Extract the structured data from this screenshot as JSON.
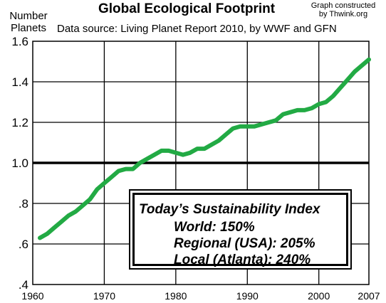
{
  "chart_data": {
    "type": "line",
    "title": "Global Ecological Footprint",
    "subtitle": "Data source: Living Planet Report 2010, by WWF and GFN",
    "credit": "Graph constructed by Thwink.org",
    "ylabel": "Number Planets",
    "xlabel": "",
    "xlim": [
      1960,
      2007
    ],
    "ylim": [
      0.4,
      1.6
    ],
    "x_ticks": [
      "1960",
      "1970",
      "1980",
      "1990",
      "2000",
      "2007"
    ],
    "x_tick_values": [
      1960,
      1970,
      1980,
      1990,
      2000,
      2007
    ],
    "y_ticks": [
      ".4",
      ".6",
      ".8",
      "1.0",
      "1.2",
      "1.4",
      "1.6"
    ],
    "y_tick_values": [
      0.4,
      0.6,
      0.8,
      1.0,
      1.2,
      1.4,
      1.6
    ],
    "grid": true,
    "reference_line": 1.0,
    "series_color": "#22aa44",
    "series": [
      {
        "x": [
          1961,
          1962,
          1963,
          1964,
          1965,
          1966,
          1967,
          1968,
          1969,
          1970,
          1971,
          1972,
          1973,
          1974,
          1975,
          1976,
          1977,
          1978,
          1979,
          1980,
          1981,
          1982,
          1983,
          1984,
          1985,
          1986,
          1987,
          1988,
          1989,
          1990,
          1991,
          1992,
          1993,
          1994,
          1995,
          1996,
          1997,
          1998,
          1999,
          2000,
          2001,
          2002,
          2003,
          2004,
          2005,
          2006,
          2007
        ],
        "values": [
          0.63,
          0.65,
          0.68,
          0.71,
          0.74,
          0.76,
          0.79,
          0.82,
          0.87,
          0.9,
          0.93,
          0.96,
          0.97,
          0.97,
          1.0,
          1.02,
          1.04,
          1.06,
          1.06,
          1.05,
          1.04,
          1.05,
          1.07,
          1.07,
          1.09,
          1.11,
          1.14,
          1.17,
          1.18,
          1.18,
          1.18,
          1.19,
          1.2,
          1.21,
          1.24,
          1.25,
          1.26,
          1.26,
          1.27,
          1.29,
          1.3,
          1.33,
          1.37,
          1.41,
          1.45,
          1.48,
          1.51
        ]
      }
    ]
  },
  "index_box": {
    "heading": "Today’s Sustainability Index",
    "world": "World: 150%",
    "regional": "Regional (USA): 205%",
    "local": "Local (Atlanta): 240%"
  }
}
